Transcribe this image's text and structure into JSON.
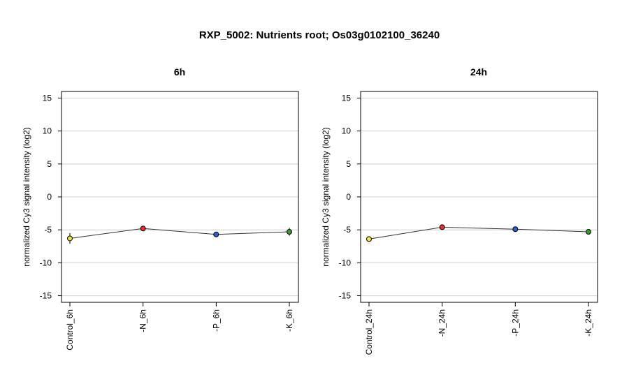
{
  "title": "RXP_5002: Nutrients root; Os03g0102100_36240",
  "chart_data": [
    {
      "type": "line",
      "title": "6h",
      "ylabel": "normalized Cy3 signal intensity (log2)",
      "ylim": [
        -16,
        16
      ],
      "yticks": [
        -15,
        -10,
        -5,
        0,
        5,
        10,
        15
      ],
      "grid": true,
      "categories": [
        "Control_6h",
        "-N_6h",
        "-P_6h",
        "-K_6h"
      ],
      "values": [
        -6.3,
        -4.8,
        -5.7,
        -5.3
      ],
      "errors": [
        0.8,
        0.25,
        0.2,
        0.6
      ],
      "point_colors": [
        "#f2e33d",
        "#e0302b",
        "#2d5fcf",
        "#3a9a2e"
      ]
    },
    {
      "type": "line",
      "title": "24h",
      "ylabel": "normalized Cy3 signal intensity (log2)",
      "ylim": [
        -16,
        16
      ],
      "yticks": [
        -15,
        -10,
        -5,
        0,
        5,
        10,
        15
      ],
      "grid": true,
      "categories": [
        "Control_24h",
        "-N_24h",
        "-P_24h",
        "-K_24h"
      ],
      "values": [
        -6.4,
        -4.6,
        -4.9,
        -5.3
      ],
      "errors": [
        0.3,
        0.3,
        0.2,
        0.2
      ],
      "point_colors": [
        "#f2e33d",
        "#e0302b",
        "#2d5fcf",
        "#3a9a2e"
      ]
    }
  ]
}
